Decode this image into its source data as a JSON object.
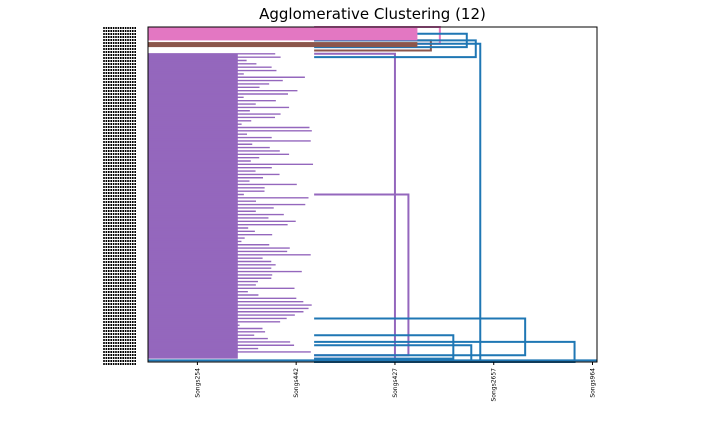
{
  "chart_data": {
    "type": "dendrogram",
    "title": "Agglomerative Clustering (12)",
    "orientation": "left",
    "xlabel": "",
    "ylabel": "",
    "x_tick_labels": [
      "Songs254",
      "Songs442",
      "Songs427",
      "Songs2657",
      "Songs964"
    ],
    "xlim": [
      0,
      1
    ],
    "x_tick_positions": [
      0.11,
      0.33,
      0.55,
      0.77,
      0.99
    ],
    "n_clusters": 12,
    "cluster_colors": {
      "dominant": "#9467bd",
      "pink": "#e377c2",
      "brown": "#8c564b",
      "link_above_threshold": "#1f77b4"
    },
    "merges": [
      {
        "name": "top-pink-cluster",
        "color": "#e377c2",
        "y_range": [
          0.0,
          0.05
        ],
        "height": 0.65
      },
      {
        "name": "brown-cluster",
        "color": "#8c564b",
        "y_range": [
          0.04,
          0.07
        ],
        "height": 0.63
      },
      {
        "name": "purple-main-cluster",
        "color": "#9467bd",
        "y_range": [
          0.08,
          0.99
        ],
        "height": 0.55
      },
      {
        "name": "purple-sub-1",
        "color": "#9467bd",
        "y_range": [
          0.5,
          0.98
        ],
        "height": 0.58
      },
      {
        "name": "top-blue-1",
        "color": "#1f77b4",
        "y_range": [
          0.02,
          0.06
        ],
        "height": 0.71
      },
      {
        "name": "top-blue-2",
        "color": "#1f77b4",
        "y_range": [
          0.04,
          0.09
        ],
        "height": 0.73
      },
      {
        "name": "bottom-blue-1",
        "color": "#1f77b4",
        "y_range": [
          0.92,
          0.99
        ],
        "height": 0.68
      },
      {
        "name": "bottom-blue-2",
        "color": "#1f77b4",
        "y_range": [
          0.95,
          1.0
        ],
        "height": 0.72
      },
      {
        "name": "bottom-blue-3",
        "color": "#1f77b4",
        "y_range": [
          0.87,
          0.98
        ],
        "height": 0.84
      },
      {
        "name": "bottom-blue-4",
        "color": "#1f77b4",
        "y_range": [
          0.94,
          1.0
        ],
        "height": 0.95
      },
      {
        "name": "root-link",
        "color": "#1f77b4",
        "y_range": [
          0.05,
          1.0
        ],
        "height": 0.74
      }
    ]
  }
}
